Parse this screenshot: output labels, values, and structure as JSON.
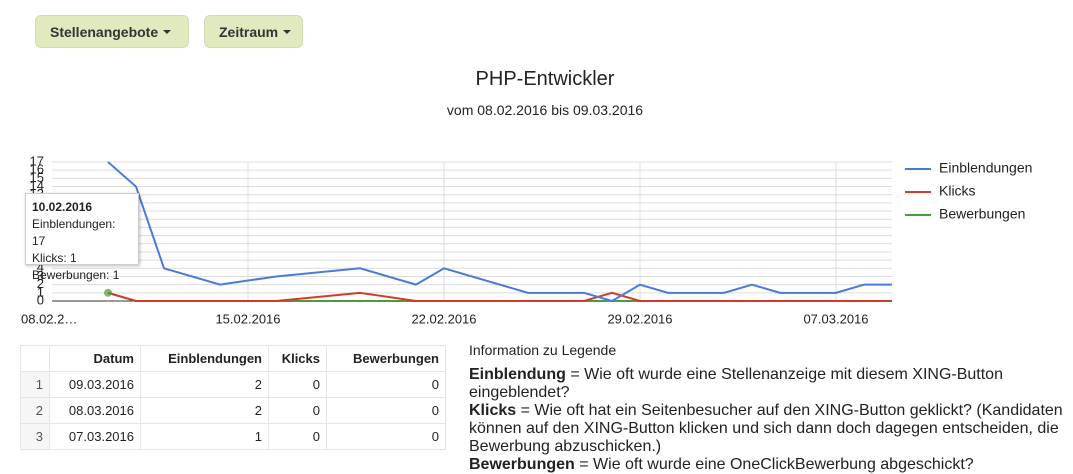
{
  "buttons": [
    "Stellenangebote",
    "Zeitraum"
  ],
  "chart_data": {
    "type": "line",
    "title": "PHP-Entwickler",
    "subtitle": "vom 08.02.2016 bis 09.03.2016",
    "x": [
      "10.02.2016",
      "11.02.2016",
      "12.02.2016",
      "14.02.2016",
      "16.02.2016",
      "19.02.2016",
      "21.02.2016",
      "22.02.2016",
      "25.02.2016",
      "27.02.2016",
      "28.02.2016",
      "29.02.2016",
      "01.03.2016",
      "03.03.2016",
      "04.03.2016",
      "05.03.2016",
      "07.03.2016",
      "08.03.2016",
      "09.03.2016"
    ],
    "series": [
      {
        "name": "Einblendungen",
        "color": "#4a7bd8",
        "values": [
          17,
          14,
          4,
          2,
          3,
          4,
          2,
          4,
          1,
          1,
          0,
          2,
          1,
          1,
          2,
          1,
          1,
          2,
          2
        ]
      },
      {
        "name": "Klicks",
        "color": "#d33a2c",
        "values": [
          1,
          0,
          0,
          0,
          0,
          1,
          0,
          0,
          0,
          0,
          1,
          0,
          0,
          0,
          0,
          0,
          0,
          0,
          0
        ]
      },
      {
        "name": "Bewerbungen",
        "color": "#4c9a3a",
        "values": [
          1,
          0,
          0,
          0,
          0,
          0,
          0,
          0,
          0,
          0,
          0,
          0,
          0,
          0,
          0,
          0,
          0,
          0,
          0
        ]
      }
    ],
    "xlim": [
      "08.02.2016",
      "09.03.2016"
    ],
    "xticks": [
      {
        "value": "08.02.2016",
        "label": "08.02.2…"
      },
      "15.02.2016",
      "22.02.2016",
      "29.02.2016",
      "07.03.2016"
    ],
    "ylim": [
      0,
      17
    ],
    "yticks": [
      0,
      1,
      2,
      3,
      4,
      5,
      6,
      7,
      8,
      9,
      10,
      11,
      12,
      13,
      14,
      15,
      16,
      17
    ],
    "grid": true,
    "legend": "right",
    "tooltip": {
      "title": "10.02.2016",
      "lines": [
        "Einblendungen: 17",
        "Klicks: 1",
        "Bewerbungen: 1"
      ]
    }
  },
  "table": {
    "columns": [
      "",
      "Datum",
      "Einblendungen",
      "Klicks",
      "Bewerbungen"
    ],
    "rows": [
      [
        1,
        "09.03.2016",
        2,
        0,
        0
      ],
      [
        2,
        "08.03.2016",
        2,
        0,
        0
      ],
      [
        3,
        "07.03.2016",
        1,
        0,
        0
      ]
    ]
  },
  "info": {
    "title": "Information zu Legende",
    "items": [
      {
        "term": "Einblendung",
        "text": " = Wie oft wurde eine Stellenanzeige mit diesem XING-Button eingeblendet?"
      },
      {
        "term": "Klicks",
        "text": " = Wie oft hat ein Seitenbesucher auf den XING-Button geklickt? (Kandidaten können auf den XING-Button klicken und sich dann doch dagegen entscheiden, die Bewerbung abzuschicken.)"
      },
      {
        "term": "Bewerbungen",
        "text": " = Wie oft wurde eine OneClickBewerbung abgeschickt?"
      }
    ]
  }
}
